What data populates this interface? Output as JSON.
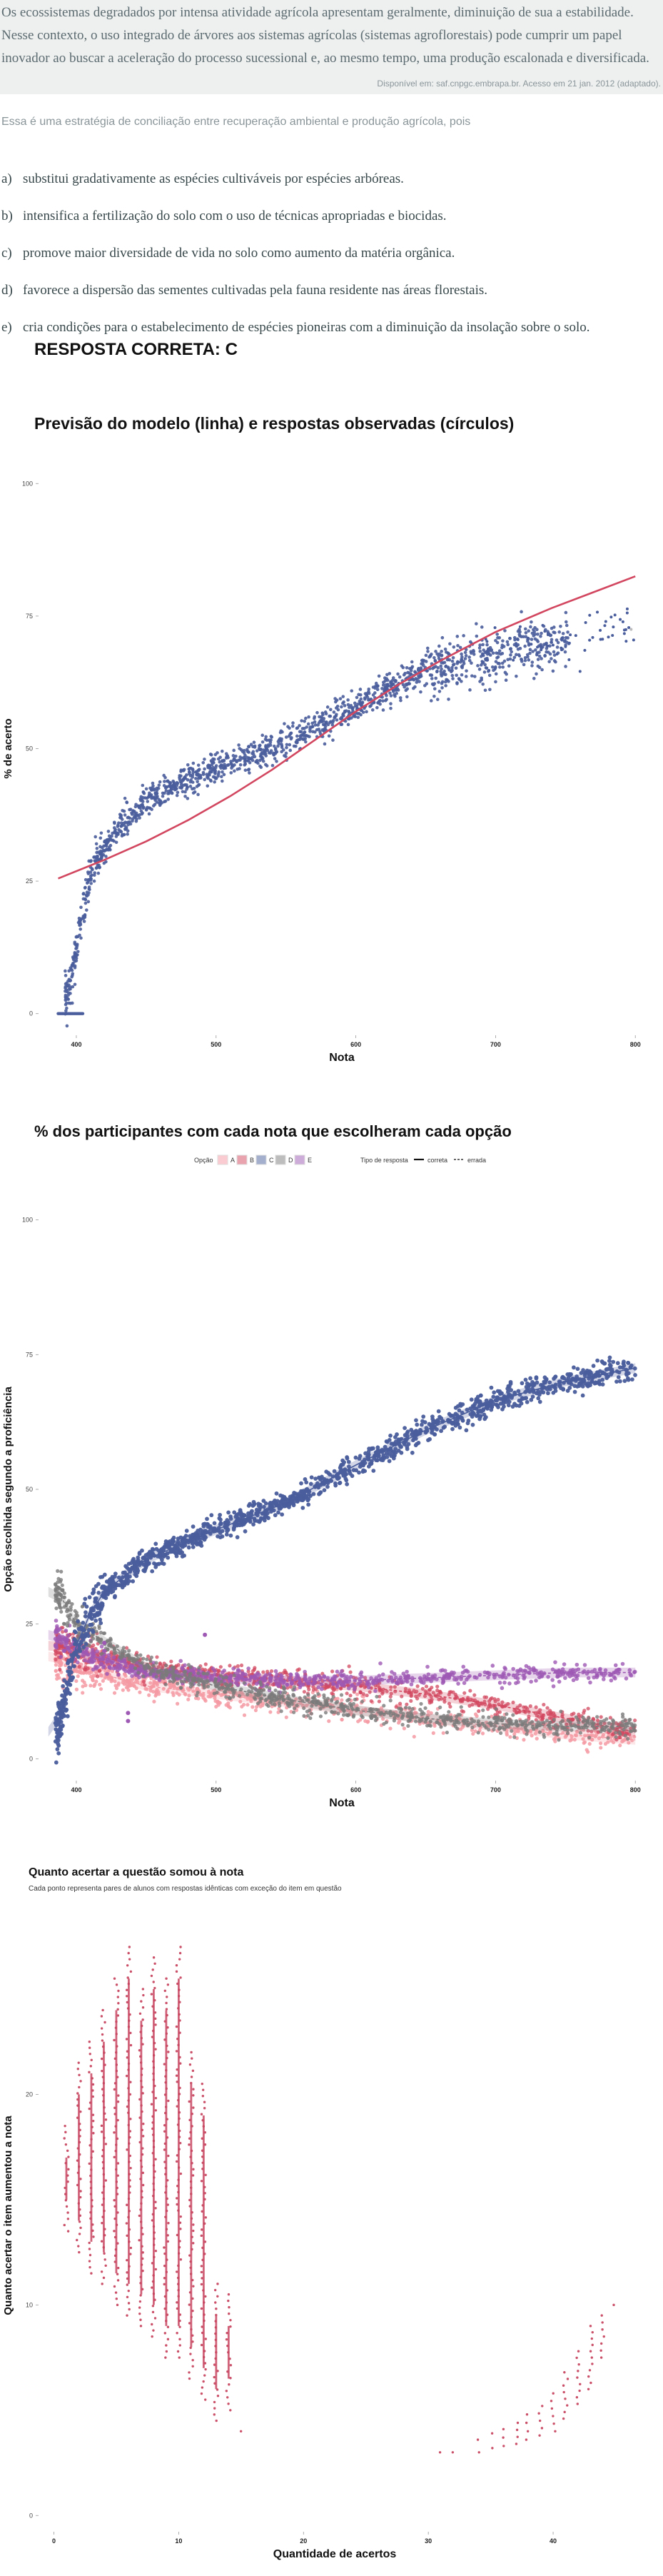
{
  "context": {
    "lines": [
      "Os ecossistemas degradados por intensa atividade agrícola apresentam geralmente, diminuição de sua a estabilidade.",
      "Nesse contexto, o uso integrado de árvores aos sistemas agrícolas (sistemas agroflorestais) pode cumprir um papel",
      "inovador ao buscar a aceleração do processo sucessional e, ao mesmo tempo, uma produção escalonada e diversificada."
    ],
    "source": "Disponível em: saf.cnpgc.embrapa.br. Acesso em 21 jan. 2012 (adaptado)."
  },
  "question": {
    "lead": "Essa é uma estratégia de conciliação entre recuperação ambiental e produção agrícola, pois",
    "options": [
      {
        "letter": "a)",
        "text": "substitui gradativamente as espécies cultiváveis por espécies arbóreas."
      },
      {
        "letter": "b)",
        "text": "intensifica a fertilização do solo com o uso de técnicas apropriadas e biocidas."
      },
      {
        "letter": "c)",
        "text": "promove maior diversidade de vida no solo como aumento da matéria orgânica."
      },
      {
        "letter": "d)",
        "text": "favorece a dispersão das sementes cultivadas pela fauna residente nas áreas florestais."
      },
      {
        "letter": "e)",
        "text": "cria condições para o estabelecimento de espécies pioneiras com a diminuição da insolação sobre o solo."
      }
    ],
    "answer": "RESPOSTA CORRETA: C"
  },
  "colors": {
    "blue": "#4a5d9c",
    "red": "#d2475f",
    "pink": "#f59aa3",
    "purple": "#9e59b4",
    "gray": "#7b7b7b",
    "red_strip": "#c84761"
  },
  "chart_data": [
    {
      "type": "scatter",
      "title": "Previsão do modelo (linha) e respostas observadas (círculos)",
      "xlabel": "Nota",
      "ylabel": "% de acerto",
      "xlim": [
        375,
        805
      ],
      "ylim": [
        -3,
        103
      ],
      "xticks": [
        400,
        500,
        600,
        700,
        800
      ],
      "yticks": [
        0,
        25,
        50,
        75,
        100
      ],
      "model_curve": {
        "x": [
          387,
          420,
          450,
          480,
          510,
          540,
          570,
          600,
          630,
          660,
          700,
          740,
          770,
          800
        ],
        "y": [
          25.5,
          29,
          32.5,
          36.5,
          41,
          46,
          51.5,
          57,
          62,
          66.5,
          72,
          76.5,
          79.5,
          82.5
        ]
      },
      "observed_trend": {
        "x": [
          387,
          395,
          400,
          405,
          410,
          420,
          430,
          450,
          475,
          500,
          530,
          560,
          590,
          620,
          650,
          680,
          720,
          760,
          800
        ],
        "y": [
          0,
          5,
          12,
          20,
          26,
          31,
          35,
          40,
          43.5,
          46,
          49,
          52.5,
          56.5,
          61,
          64.5,
          66.5,
          69,
          71,
          73
        ]
      }
    },
    {
      "type": "scatter",
      "title": "% dos participantes com cada nota que escolheram cada opção",
      "xlabel": "Nota",
      "ylabel": "Opção escolhida segundo a proficiência",
      "xlim": [
        375,
        805
      ],
      "ylim": [
        -3,
        103
      ],
      "xticks": [
        400,
        500,
        600,
        700,
        800
      ],
      "yticks": [
        0,
        25,
        50,
        75,
        100
      ],
      "legend": {
        "option_title": "Opção",
        "options": [
          "A",
          "B",
          "C",
          "D",
          "E"
        ],
        "type_title": "Tipo de resposta",
        "types": [
          "correta",
          "errada"
        ],
        "placement": "top-center"
      },
      "series": [
        {
          "name": "A",
          "x": [
            387,
            400,
            450,
            500,
            550,
            600,
            650,
            700,
            750,
            800
          ],
          "y": [
            19,
            17,
            13.5,
            12,
            10.5,
            9,
            7.5,
            6,
            4.5,
            3.5
          ]
        },
        {
          "name": "B",
          "x": [
            387,
            400,
            450,
            500,
            550,
            600,
            650,
            700,
            750,
            800
          ],
          "y": [
            21,
            20,
            17,
            15.5,
            14.5,
            13.5,
            12,
            10,
            7.5,
            5
          ]
        },
        {
          "name": "C",
          "x": [
            387,
            395,
            400,
            410,
            420,
            450,
            500,
            550,
            600,
            650,
            700,
            750,
            800
          ],
          "y": [
            5,
            15,
            21,
            27,
            31,
            37,
            42.5,
            47.5,
            54.5,
            61,
            66.5,
            70,
            72.5
          ]
        },
        {
          "name": "D",
          "x": [
            387,
            400,
            450,
            500,
            550,
            600,
            650,
            700,
            750,
            800
          ],
          "y": [
            23,
            20,
            16,
            15,
            14.5,
            14.5,
            15,
            15.5,
            16,
            16
          ]
        },
        {
          "name": "E",
          "x": [
            387,
            400,
            450,
            500,
            550,
            600,
            650,
            700,
            750,
            800
          ],
          "y": [
            31,
            25,
            17,
            13.5,
            11,
            9,
            7.5,
            6.5,
            6,
            6
          ]
        }
      ]
    },
    {
      "type": "scatter",
      "title": "Quanto acertar a questão somou à nota",
      "subtitle": "Cada ponto representa pares de alunos com respostas idênticas com exceção do item em questão",
      "xlabel": "Quantidade de acertos",
      "ylabel": "Quanto acertar o item aumentou a nota",
      "xlim": [
        -1,
        46
      ],
      "ylim": [
        -0.5,
        29
      ],
      "xticks": [
        0,
        10,
        20,
        30,
        40
      ],
      "yticks": [
        0,
        10,
        20
      ],
      "columns": [
        {
          "x": 1,
          "ymin": 13.5,
          "ymax": 18.5
        },
        {
          "x": 2,
          "ymin": 12.5,
          "ymax": 21.5
        },
        {
          "x": 3,
          "ymin": 11.5,
          "ymax": 22.5
        },
        {
          "x": 4,
          "ymin": 11,
          "ymax": 24
        },
        {
          "x": 5,
          "ymin": 10,
          "ymax": 25.5
        },
        {
          "x": 6,
          "ymin": 9.5,
          "ymax": 27
        },
        {
          "x": 7,
          "ymin": 9,
          "ymax": 25
        },
        {
          "x": 8,
          "ymin": 8.5,
          "ymax": 26.5
        },
        {
          "x": 9,
          "ymin": 7.5,
          "ymax": 25.5
        },
        {
          "x": 10,
          "ymin": 7.5,
          "ymax": 27
        },
        {
          "x": 11,
          "ymin": 6.5,
          "ymax": 22
        },
        {
          "x": 12,
          "ymin": 5.5,
          "ymax": 20.5
        },
        {
          "x": 13,
          "ymin": 4.5,
          "ymax": 11
        },
        {
          "x": 14,
          "ymin": 5,
          "ymax": 10.5
        },
        {
          "x": 15,
          "ymin": 4,
          "ymax": 4.3
        }
      ],
      "columns_right": [
        {
          "x": 31,
          "ymin": 3,
          "ymax": 3.3
        },
        {
          "x": 32,
          "ymin": 3,
          "ymax": 3.2
        },
        {
          "x": 34,
          "ymin": 3,
          "ymax": 3.6
        },
        {
          "x": 35,
          "ymin": 3.2,
          "ymax": 3.9
        },
        {
          "x": 36,
          "ymin": 3.3,
          "ymax": 4.1
        },
        {
          "x": 37,
          "ymin": 3.4,
          "ymax": 4.4
        },
        {
          "x": 38,
          "ymin": 3.6,
          "ymax": 4.8
        },
        {
          "x": 39,
          "ymin": 3.8,
          "ymax": 5.2
        },
        {
          "x": 40,
          "ymin": 4,
          "ymax": 5.8
        },
        {
          "x": 41,
          "ymin": 4.6,
          "ymax": 6.8
        },
        {
          "x": 42,
          "ymin": 5.3,
          "ymax": 7.8
        },
        {
          "x": 43,
          "ymin": 6,
          "ymax": 9
        },
        {
          "x": 44,
          "ymin": 7.5,
          "ymax": 9.5
        },
        {
          "x": 45,
          "ymin": 10,
          "ymax": 10
        }
      ]
    }
  ]
}
